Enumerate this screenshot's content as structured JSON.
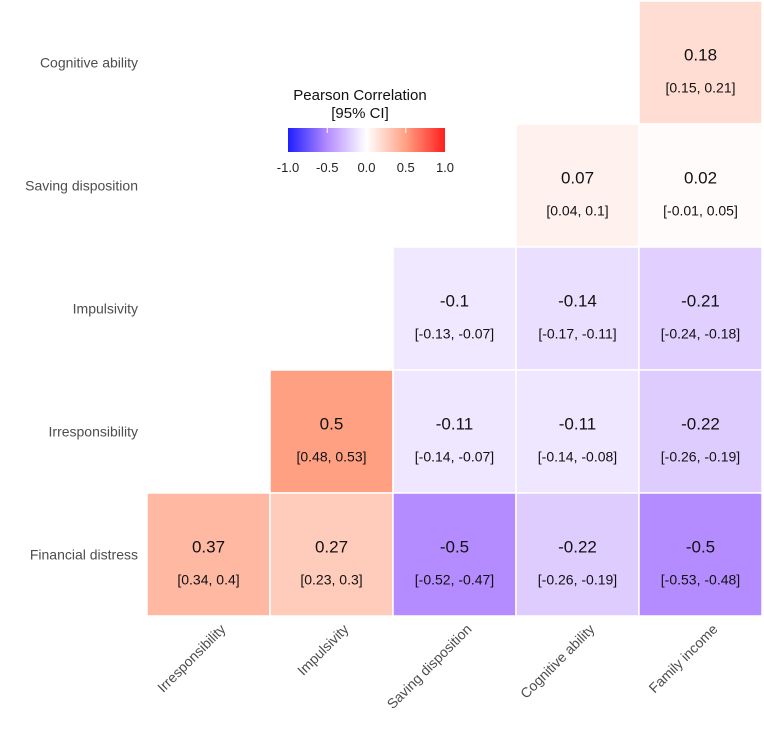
{
  "chart_data": {
    "type": "heatmap",
    "title": "",
    "legend": {
      "title_line1": "Pearson Correlation",
      "title_line2": "[95% CI]",
      "ticks": [
        "-1.0",
        "-0.5",
        "0.0",
        "0.5",
        "1.0"
      ],
      "tick_values": [
        -1,
        -0.5,
        0,
        0.5,
        1
      ],
      "range": [
        -1,
        1
      ],
      "placement": "top-left-inside",
      "low_color": "#0000ff",
      "mid_color": "#ffffff",
      "high_color": "#ff0000"
    },
    "x_categories": [
      "Irresponsibility",
      "Impulsivity",
      "Saving disposition",
      "Cognitive ability",
      "Family income"
    ],
    "y_categories": [
      "Cognitive ability",
      "Saving disposition",
      "Impulsivity",
      "Irresponsibility",
      "Financial distress"
    ],
    "cells": [
      {
        "row": 0,
        "col": 4,
        "value": 0.18,
        "label": "0.18",
        "ci": "[0.15, 0.21]"
      },
      {
        "row": 1,
        "col": 3,
        "value": 0.07,
        "label": "0.07",
        "ci": "[0.04, 0.1]"
      },
      {
        "row": 1,
        "col": 4,
        "value": 0.02,
        "label": "0.02",
        "ci": "[-0.01, 0.05]"
      },
      {
        "row": 2,
        "col": 2,
        "value": -0.1,
        "label": "-0.1",
        "ci": "[-0.13, -0.07]"
      },
      {
        "row": 2,
        "col": 3,
        "value": -0.14,
        "label": "-0.14",
        "ci": "[-0.17, -0.11]"
      },
      {
        "row": 2,
        "col": 4,
        "value": -0.21,
        "label": "-0.21",
        "ci": "[-0.24, -0.18]"
      },
      {
        "row": 3,
        "col": 1,
        "value": 0.5,
        "label": "0.5",
        "ci": "[0.48, 0.53]"
      },
      {
        "row": 3,
        "col": 2,
        "value": -0.11,
        "label": "-0.11",
        "ci": "[-0.14, -0.07]"
      },
      {
        "row": 3,
        "col": 3,
        "value": -0.11,
        "label": "-0.11",
        "ci": "[-0.14, -0.08]"
      },
      {
        "row": 3,
        "col": 4,
        "value": -0.22,
        "label": "-0.22",
        "ci": "[-0.26, -0.19]"
      },
      {
        "row": 4,
        "col": 0,
        "value": 0.37,
        "label": "0.37",
        "ci": "[0.34, 0.4]"
      },
      {
        "row": 4,
        "col": 1,
        "value": 0.27,
        "label": "0.27",
        "ci": "[0.23, 0.3]"
      },
      {
        "row": 4,
        "col": 2,
        "value": -0.5,
        "label": "-0.5",
        "ci": "[-0.52, -0.47]"
      },
      {
        "row": 4,
        "col": 3,
        "value": -0.22,
        "label": "-0.22",
        "ci": "[-0.26, -0.19]"
      },
      {
        "row": 4,
        "col": 4,
        "value": -0.5,
        "label": "-0.5",
        "ci": "[-0.53, -0.48]"
      }
    ]
  }
}
